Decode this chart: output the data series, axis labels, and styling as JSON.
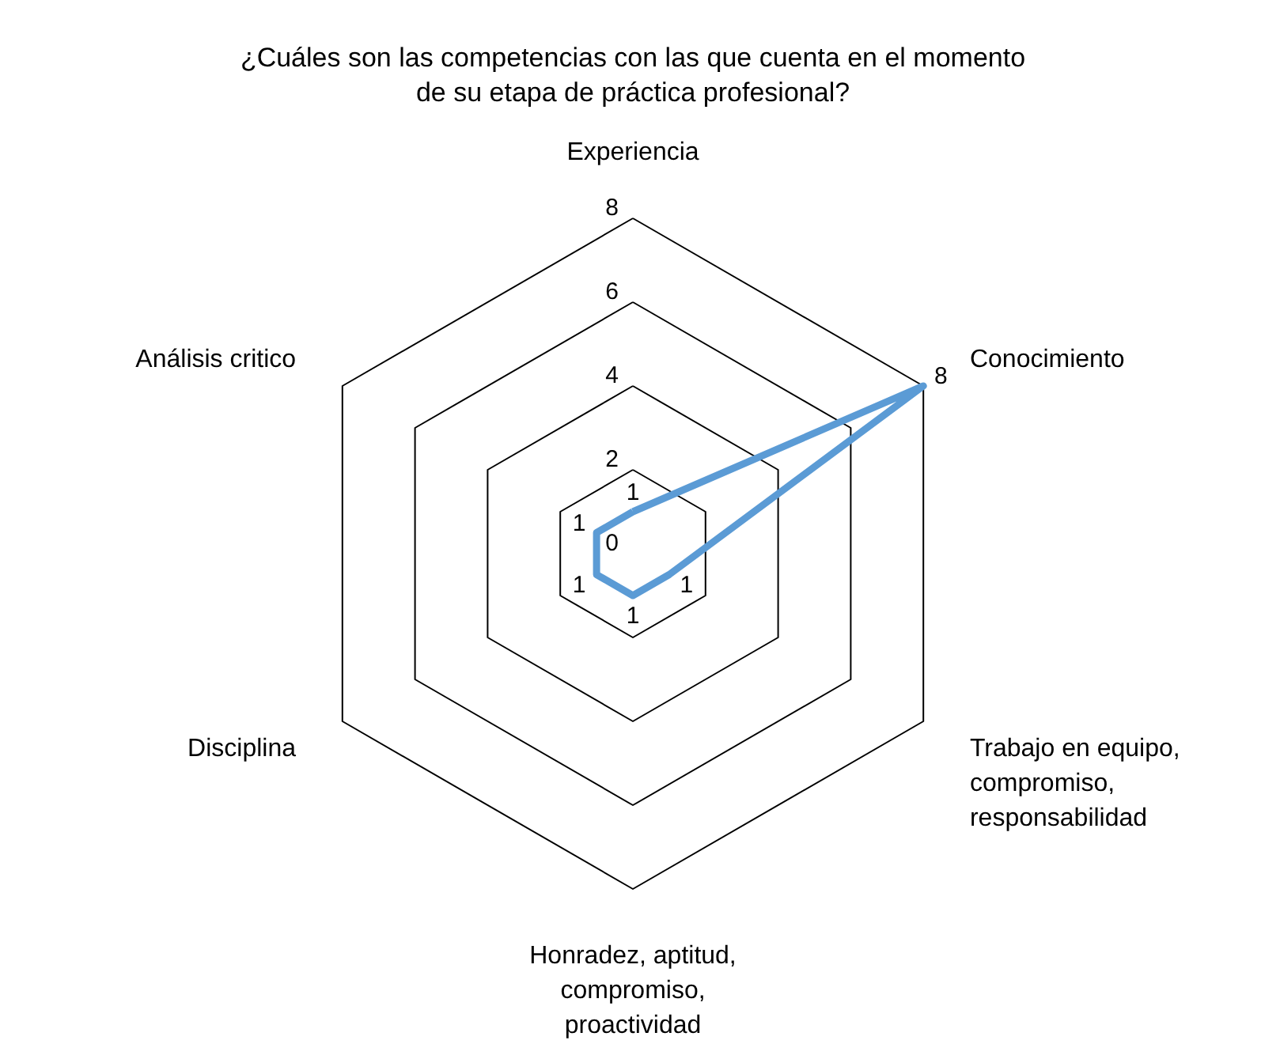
{
  "chart_data": {
    "type": "radar",
    "title": "¿Cuáles son las competencias con las que cuenta en el momento\nde su etapa de práctica profesional?",
    "categories": [
      "Experiencia",
      "Conocimiento",
      "Trabajo en equipo,\ncompromiso,\nresponsabilidad",
      "Honradez, aptitud,\ncompromiso,\nproactividad",
      "Disciplina",
      "Análisis critico"
    ],
    "series": [
      {
        "color": "#5b9bd5",
        "values": [
          1,
          8,
          1,
          1,
          1,
          1
        ]
      }
    ],
    "ylim": [
      0,
      8
    ],
    "yticks": [
      0,
      2,
      4,
      6,
      8
    ],
    "grid": true,
    "data_labels": true,
    "marker": "none",
    "line_style": "solid"
  }
}
